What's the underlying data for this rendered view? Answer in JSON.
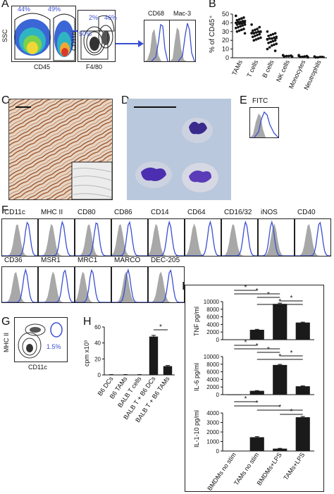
{
  "panel_labels": {
    "A": "A",
    "B": "B",
    "C": "C",
    "D": "D",
    "E": "E",
    "F": "F",
    "G": "G",
    "H": "H",
    "I": "I"
  },
  "A": {
    "ssc": "SSC",
    "cd45": "CD45",
    "cd11b": "CD11b",
    "f480": "F4/80",
    "g1": "44%",
    "g2": "49%",
    "g3": "2%",
    "g4": "46%",
    "g5": "50%",
    "h1": "CD68",
    "h2": "Mac-3"
  },
  "E": {
    "label": "FITC"
  },
  "F": {
    "row1": [
      "CD11c",
      "MHC II",
      "CD80",
      "CD86",
      "CD14",
      "CD64",
      "CD16/32",
      "iNOS",
      "CD40"
    ],
    "row2": [
      "CD36",
      "MSR1",
      "MRC1",
      "MARCO",
      "DEC-205"
    ]
  },
  "G": {
    "ylabel": "MHC II",
    "xlabel": "CD11c",
    "pct": "1.5%"
  },
  "colors": {
    "gray": "#a8a8a8",
    "blue": "#3a4fd1",
    "bar": "#1a1a1a",
    "stain": "#b06a3c"
  },
  "chart_data": [
    {
      "id": "B",
      "type": "scatter",
      "ylabel": "% of CD45⁺",
      "ylim": [
        0,
        50
      ],
      "yticks": [
        0,
        10,
        20,
        30,
        40,
        50
      ],
      "categories": [
        "TAMs",
        "T cells",
        "B cells",
        "NK cells",
        "Monocytes",
        "Neutrophils"
      ],
      "means": [
        40,
        29,
        22,
        2,
        1.5,
        1
      ],
      "points": [
        [
          48,
          46,
          45,
          44,
          43,
          42,
          42,
          41,
          41,
          40,
          40,
          39,
          39,
          38,
          38,
          37,
          36,
          35,
          34,
          33,
          32,
          31,
          30,
          28
        ],
        [
          38,
          35,
          33,
          32,
          31,
          30,
          30,
          29,
          28,
          28,
          27,
          26,
          25,
          24,
          23,
          22,
          21,
          20
        ],
        [
          30,
          28,
          27,
          26,
          25,
          24,
          23,
          22,
          22,
          21,
          20,
          19,
          18,
          17,
          16,
          15,
          14,
          12,
          10,
          8
        ],
        [
          3,
          2.5,
          2,
          2,
          1.5,
          1
        ],
        [
          3,
          2,
          1.5,
          1,
          1,
          0.5
        ],
        [
          1.5,
          1,
          1,
          0.5,
          0.5
        ]
      ]
    },
    {
      "id": "H",
      "type": "bar",
      "ylabel": "cpm x10³",
      "ylim": [
        0,
        60
      ],
      "yticks": [
        0,
        20,
        40,
        60
      ],
      "categories": [
        "B6 DCs",
        "B6 TAMs",
        "BALB T cells",
        "BALB T + B6 DCs",
        "BALB T + B6 TAMs"
      ],
      "values": [
        0.3,
        0.3,
        0.3,
        48,
        11
      ],
      "errors": [
        0.1,
        0.1,
        0.1,
        1.5,
        0.8
      ],
      "sig": [
        {
          "from": 3,
          "to": 4,
          "label": "*"
        }
      ]
    },
    {
      "id": "I-TNF",
      "type": "bar",
      "ylabel": "TNF pg/ml",
      "ylim": [
        0,
        10000
      ],
      "yticks": [
        0,
        2000,
        4000,
        6000,
        8000,
        10000
      ],
      "categories": [
        "BMDMs no stim",
        "TAMs no stim",
        "BMDMs+LPS",
        "TAMs+LPS"
      ],
      "values": [
        50,
        2600,
        9400,
        4500
      ],
      "errors": [
        0,
        120,
        200,
        100
      ],
      "sig": [
        {
          "from": 0,
          "to": 1,
          "label": "*"
        },
        {
          "from": 0,
          "to": 2,
          "label": "*"
        },
        {
          "from": 1,
          "to": 2,
          "label": "*"
        },
        {
          "from": 2,
          "to": 3,
          "label": "*"
        },
        {
          "from": 1,
          "to": 3,
          "label": "*"
        }
      ]
    },
    {
      "id": "I-IL6",
      "type": "bar",
      "ylabel": "IL-6 pg/ml",
      "ylim": [
        0,
        10000
      ],
      "yticks": [
        0,
        2000,
        4000,
        6000,
        8000,
        10000
      ],
      "categories": [
        "BMDMs no stim",
        "TAMs no stim",
        "BMDMs+LPS",
        "TAMs+LPS"
      ],
      "values": [
        30,
        1000,
        7800,
        2200
      ],
      "errors": [
        0,
        60,
        150,
        100
      ],
      "sig": [
        {
          "from": 0,
          "to": 1,
          "label": "*"
        },
        {
          "from": 0,
          "to": 2,
          "label": "*"
        },
        {
          "from": 1,
          "to": 2,
          "label": "*"
        },
        {
          "from": 2,
          "to": 3,
          "label": "*"
        },
        {
          "from": 1,
          "to": 3,
          "label": "*"
        }
      ]
    },
    {
      "id": "I-IL10",
      "type": "bar",
      "ylabel": "IL-1-10 pg/ml",
      "ylim": [
        0,
        4000
      ],
      "yticks": [
        0,
        1000,
        2000,
        3000,
        4000
      ],
      "categories": [
        "BMDMs no stim",
        "TAMs no stim",
        "BMDMs+LPS",
        "TAMs+LPS"
      ],
      "values": [
        20,
        1450,
        250,
        3550
      ],
      "errors": [
        0,
        60,
        30,
        80
      ],
      "sig": [
        {
          "from": 0,
          "to": 1,
          "label": "*"
        },
        {
          "from": 0,
          "to": 2,
          "label": "*"
        },
        {
          "from": 1,
          "to": 3,
          "label": "*"
        },
        {
          "from": 2,
          "to": 3,
          "label": "*"
        }
      ]
    }
  ]
}
